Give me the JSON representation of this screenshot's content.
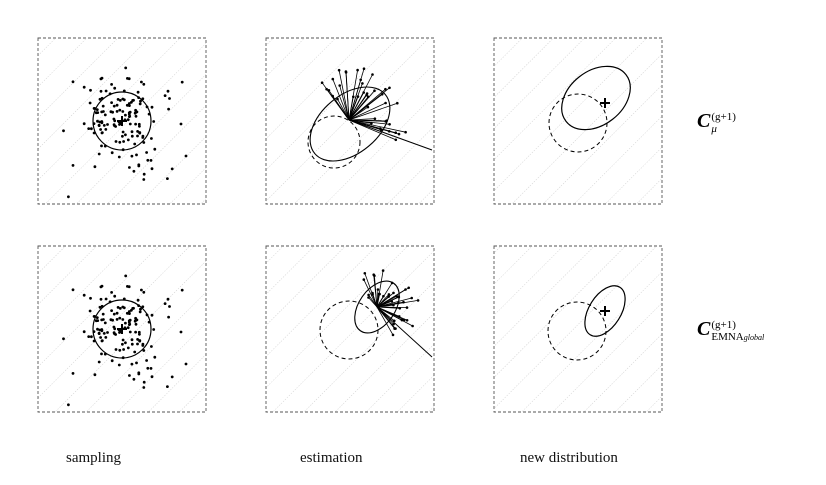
{
  "captions": {
    "sampling": "sampling",
    "estimation": "estimation",
    "new_distribution": "new distribution"
  },
  "row_labels": [
    {
      "symbol": "C",
      "superscript": "(g+1)",
      "subscript": "μ"
    },
    {
      "symbol": "C",
      "superscript": "(g+1)",
      "subscript_main": "EMNA",
      "subscript_sub": "global"
    }
  ]
}
